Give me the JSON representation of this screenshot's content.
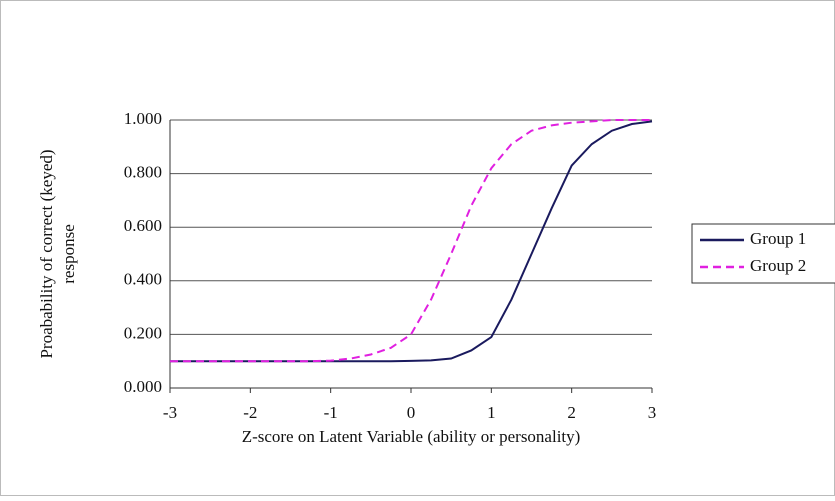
{
  "chart_data": {
    "type": "line",
    "xlabel": "Z-score on Latent Variable (ability or personality)",
    "ylabel": [
      "Proabability of correct (keyed)",
      "response"
    ],
    "x": [
      -3,
      -2.75,
      -2.5,
      -2.25,
      -2,
      -1.75,
      -1.5,
      -1.25,
      -1,
      -0.75,
      -0.5,
      -0.25,
      0,
      0.25,
      0.5,
      0.75,
      1,
      1.25,
      1.5,
      1.75,
      2,
      2.25,
      2.5,
      2.75,
      3
    ],
    "series": [
      {
        "name": "Group 1",
        "color": "#1a1a5e",
        "dash": false,
        "values": [
          0.1,
          0.1,
          0.1,
          0.1,
          0.1,
          0.1,
          0.1,
          0.1,
          0.1,
          0.1,
          0.1,
          0.1,
          0.101,
          0.103,
          0.11,
          0.14,
          0.19,
          0.33,
          0.5,
          0.67,
          0.83,
          0.91,
          0.96,
          0.985,
          0.995
        ]
      },
      {
        "name": "Group 2",
        "color": "#e020e0",
        "dash": true,
        "values": [
          0.1,
          0.1,
          0.1,
          0.1,
          0.1,
          0.1,
          0.1,
          0.1,
          0.102,
          0.11,
          0.125,
          0.15,
          0.2,
          0.33,
          0.5,
          0.68,
          0.82,
          0.91,
          0.96,
          0.98,
          0.99,
          0.995,
          1,
          1,
          1
        ]
      }
    ],
    "xlim": [
      -3,
      3
    ],
    "xticks": [
      -3,
      -2,
      -1,
      0,
      1,
      2,
      3
    ],
    "ylim": [
      0,
      1
    ],
    "yticks": [
      {
        "value": 0,
        "label": "0.000"
      },
      {
        "value": 0.2,
        "label": "0.200"
      },
      {
        "value": 0.4,
        "label": "0.400"
      },
      {
        "value": 0.6,
        "label": "0.600"
      },
      {
        "value": 0.8,
        "label": "0.800"
      },
      {
        "value": 1,
        "label": "1.000"
      }
    ],
    "grid": true,
    "legend": "right"
  }
}
